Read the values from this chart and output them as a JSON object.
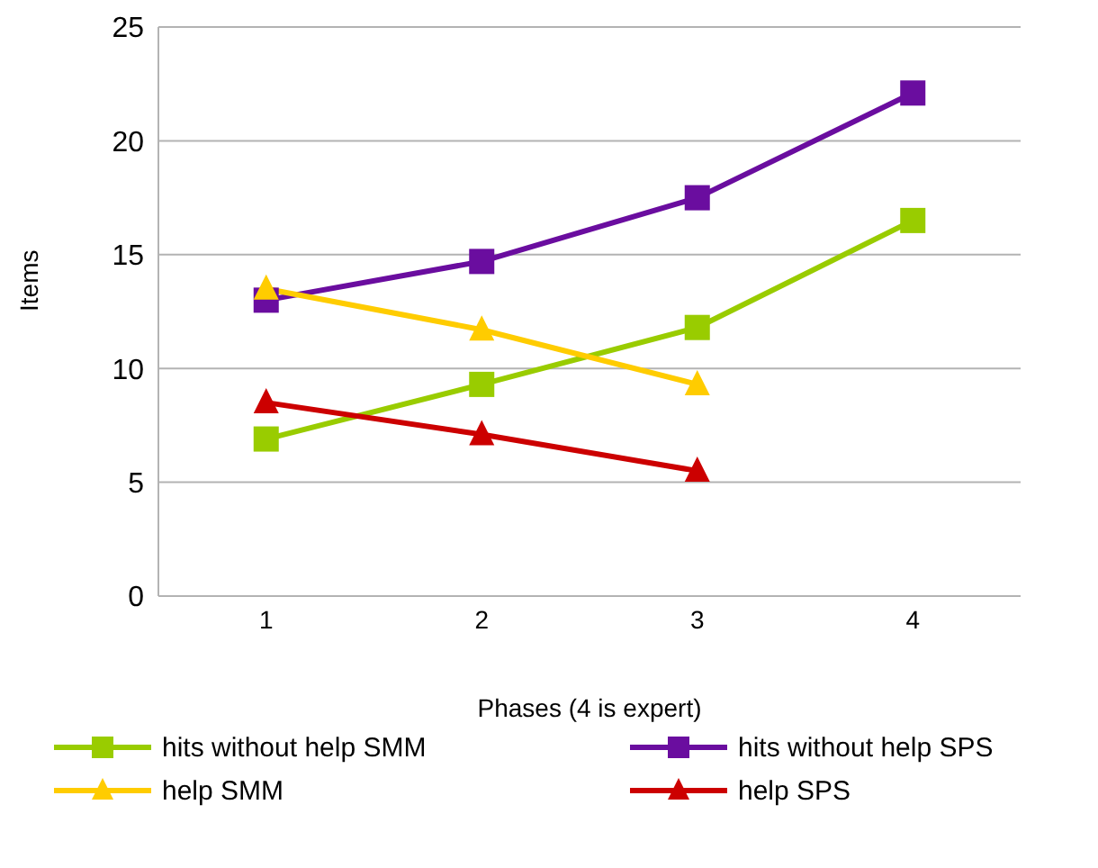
{
  "chart_data": {
    "type": "line",
    "xlabel": "Phases (4 is expert)",
    "ylabel": "Items",
    "categories": [
      "1",
      "2",
      "3",
      "4"
    ],
    "ylim": [
      0,
      25
    ],
    "yticks": [
      0,
      5,
      10,
      15,
      20,
      25
    ],
    "grid": "y",
    "legend": "bottom",
    "series": [
      {
        "name": "hits without help SMM",
        "color": "#99cc00",
        "marker": "square",
        "values": [
          6.9,
          9.3,
          11.8,
          16.5
        ]
      },
      {
        "name": "hits without help SPS",
        "color": "#6a0d9f",
        "marker": "square",
        "values": [
          13,
          14.7,
          17.5,
          22.1
        ]
      },
      {
        "name": "help SMM",
        "color": "#ffcc00",
        "marker": "triangle",
        "values": [
          13.5,
          11.7,
          9.3,
          null
        ]
      },
      {
        "name": "help SPS",
        "color": "#cc0000",
        "marker": "triangle",
        "values": [
          8.5,
          7.1,
          5.5,
          null
        ]
      }
    ]
  }
}
